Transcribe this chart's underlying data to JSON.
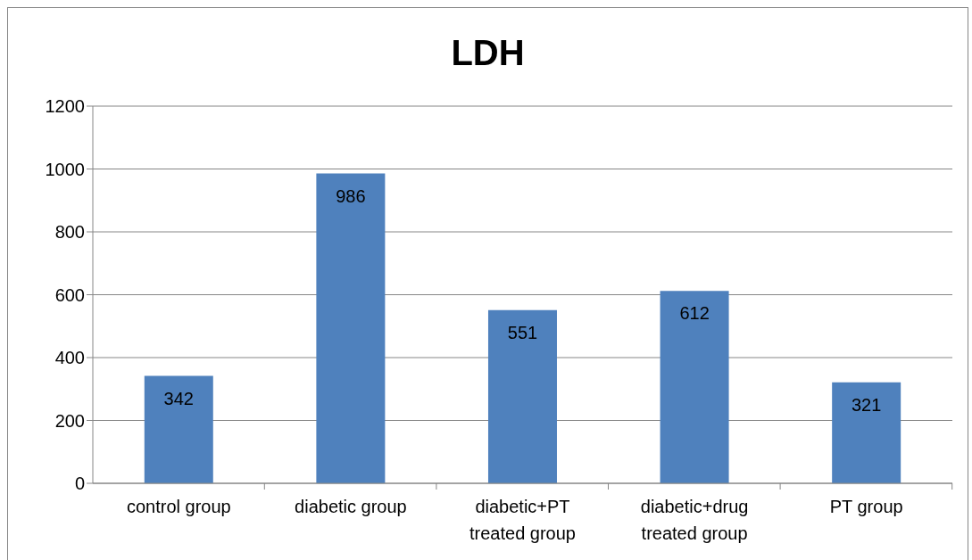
{
  "chart_data": {
    "type": "bar",
    "title": "LDH",
    "categories": [
      "control group",
      "diabetic group",
      "diabetic+PT treated group",
      "diabetic+drug treated group",
      "PT group"
    ],
    "values": [
      342,
      986,
      551,
      612,
      321
    ],
    "color": "#4f81bd",
    "ylim": [
      0,
      1200
    ],
    "yticks": [
      0,
      200,
      400,
      600,
      800,
      1000,
      1200
    ],
    "grid": "y",
    "data_labels": true
  }
}
